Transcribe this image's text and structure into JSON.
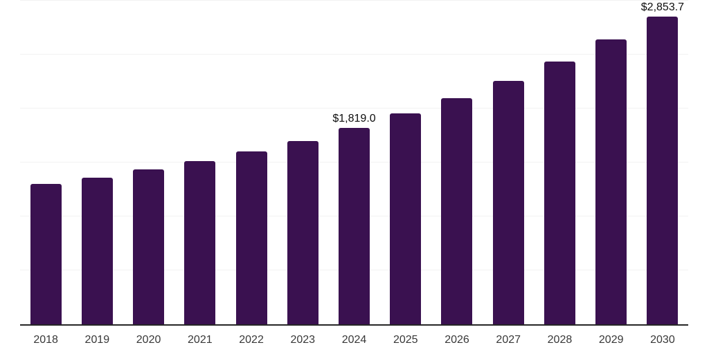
{
  "chart_data": {
    "type": "bar",
    "categories": [
      "2018",
      "2019",
      "2020",
      "2021",
      "2022",
      "2023",
      "2024",
      "2025",
      "2026",
      "2027",
      "2028",
      "2029",
      "2030"
    ],
    "values": [
      1302,
      1360,
      1437,
      1513,
      1603,
      1699,
      1819.0,
      1956,
      2097,
      2257,
      2437,
      2642,
      2853.7
    ],
    "data_labels": [
      "",
      "",
      "",
      "",
      "",
      "",
      "$1,819.0",
      "",
      "",
      "",
      "",
      "",
      "$2,853.7"
    ],
    "title": "",
    "xlabel": "",
    "ylabel": "",
    "ylim": [
      0,
      3000
    ],
    "gridline_step": 500,
    "grid": "horizontal gridlines, no y-axis tick labels",
    "legend": "none",
    "colors": {
      "bar": "#3a1150",
      "gridline": "#f2f2f2",
      "axis_line": "#262626",
      "tick_label": "#383838",
      "data_label": "#0d0d0d",
      "background": "#ffffff"
    }
  }
}
